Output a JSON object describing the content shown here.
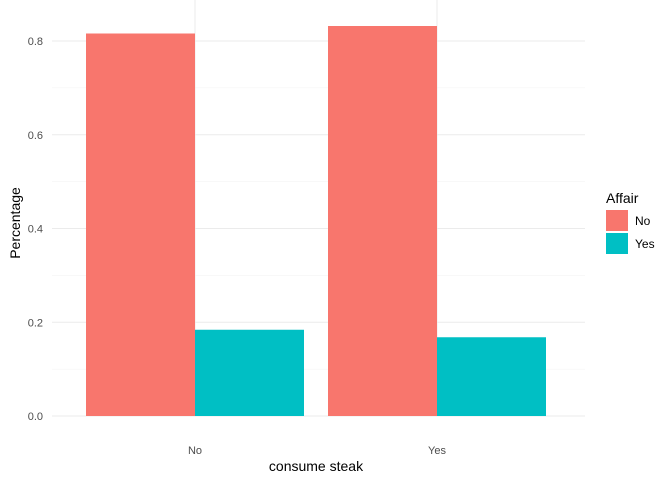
{
  "chart_data": {
    "type": "bar",
    "categories": [
      "No",
      "Yes"
    ],
    "series": [
      {
        "name": "No",
        "values": [
          0.816,
          0.832
        ],
        "color": "#F8766D"
      },
      {
        "name": "Yes",
        "values": [
          0.184,
          0.168
        ],
        "color": "#00BFC4"
      }
    ],
    "xlabel": "consume steak",
    "ylabel": "Percentage",
    "ylim": [
      0,
      0.85
    ],
    "yticks": [
      "0.0",
      "0.2",
      "0.4",
      "0.6",
      "0.8"
    ],
    "grid": true,
    "legend": {
      "title": "Affair",
      "position": "right"
    }
  }
}
